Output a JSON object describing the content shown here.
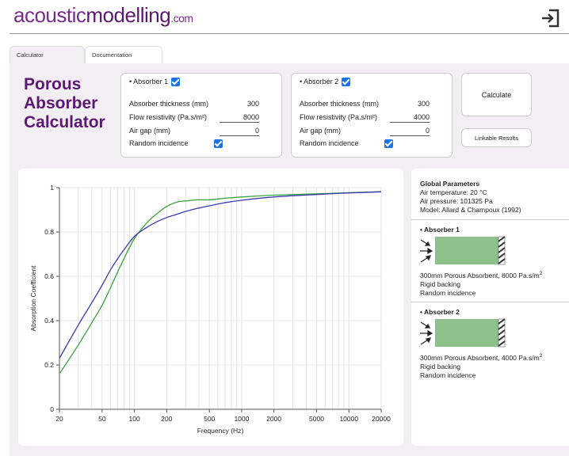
{
  "logo": {
    "part1": "acoustic",
    "part2": "modelling",
    "part3": ".com"
  },
  "tabs": [
    {
      "label": "Calculator"
    },
    {
      "label": "Documentation"
    }
  ],
  "title": {
    "line1": "Porous",
    "line2": "Absorber",
    "line3": "Calculator"
  },
  "absorbers": [
    {
      "header": "• Absorber 1",
      "enabled": true,
      "thickness_label": "Absorber thickness (mm)",
      "thickness": "300",
      "flow_label": "Flow resistivity (Pa.s/m²)",
      "flow": "8000",
      "airgap_label": "Air gap (mm)",
      "airgap": "0",
      "incidence_label": "Random incidence",
      "random_incidence": true
    },
    {
      "header": "• Absorber 2",
      "enabled": true,
      "thickness_label": "Absorber thickness (mm)",
      "thickness": "300",
      "flow_label": "Flow resistivity (Pa.s/m²)",
      "flow": "4000",
      "airgap_label": "Air gap (mm)",
      "airgap": "0",
      "incidence_label": "Random incidence",
      "random_incidence": true
    }
  ],
  "buttons": {
    "calculate": "Calculate",
    "linkable": "Linkable Results"
  },
  "info": {
    "global_title": "Global Parameters",
    "air_temp": "Air temperature: 20 °C",
    "air_pressure": "Air pressure: 101325 Pa",
    "model": "Model: Allard & Champoux (1992)",
    "abs1_title": "• Absorber 1",
    "abs1_desc": "300mm Porous Absorbent, 8000 Pa.s/m",
    "abs1_backing": "Rigid backing",
    "abs1_incidence": "Random incidence",
    "abs2_title": "• Absorber 2",
    "abs2_desc": "300mm Porous Absorbent, 4000 Pa.s/m",
    "abs2_backing": "Rigid backing",
    "abs2_incidence": "Random incidence",
    "sup": "2"
  },
  "colors": {
    "accent": "#5b1a70",
    "series1": "#3aa33a",
    "series2": "#3b3bb0",
    "absorber_fill": "#8dc08b"
  },
  "chart_data": {
    "type": "line",
    "title": "",
    "xlabel": "Frequency (Hz)",
    "ylabel": "Absorption Coefficient",
    "xscale": "log",
    "xlim": [
      20,
      20000
    ],
    "ylim": [
      0,
      1
    ],
    "xticks": [
      20,
      50,
      100,
      200,
      500,
      1000,
      2000,
      5000,
      10000,
      20000
    ],
    "xtick_labels": [
      "20",
      "50",
      "100",
      "200",
      "500",
      "1000",
      "2000",
      "5000",
      "10000",
      "20000"
    ],
    "yticks": [
      0,
      0.2,
      0.4,
      0.6,
      0.8,
      1
    ],
    "ytick_labels": [
      "0",
      "0.2",
      "0.4",
      "0.6",
      "0.8",
      "1"
    ],
    "series": [
      {
        "name": "Absorber 1",
        "color": "#3aa33a",
        "x": [
          20,
          30,
          40,
          50,
          60,
          70,
          80,
          100,
          130,
          160,
          200,
          250,
          300,
          400,
          500,
          700,
          1000,
          2000,
          5000,
          10000,
          20000
        ],
        "y": [
          0.16,
          0.29,
          0.39,
          0.47,
          0.55,
          0.62,
          0.68,
          0.77,
          0.84,
          0.88,
          0.915,
          0.935,
          0.94,
          0.945,
          0.945,
          0.952,
          0.958,
          0.966,
          0.972,
          0.977,
          0.982
        ]
      },
      {
        "name": "Absorber 2",
        "color": "#3b3bb0",
        "x": [
          20,
          30,
          40,
          50,
          60,
          70,
          80,
          100,
          130,
          160,
          200,
          250,
          300,
          400,
          500,
          700,
          1000,
          2000,
          5000,
          10000,
          20000
        ],
        "y": [
          0.23,
          0.38,
          0.48,
          0.56,
          0.63,
          0.68,
          0.72,
          0.78,
          0.82,
          0.845,
          0.865,
          0.88,
          0.893,
          0.908,
          0.918,
          0.932,
          0.943,
          0.958,
          0.969,
          0.976,
          0.981
        ]
      }
    ]
  }
}
